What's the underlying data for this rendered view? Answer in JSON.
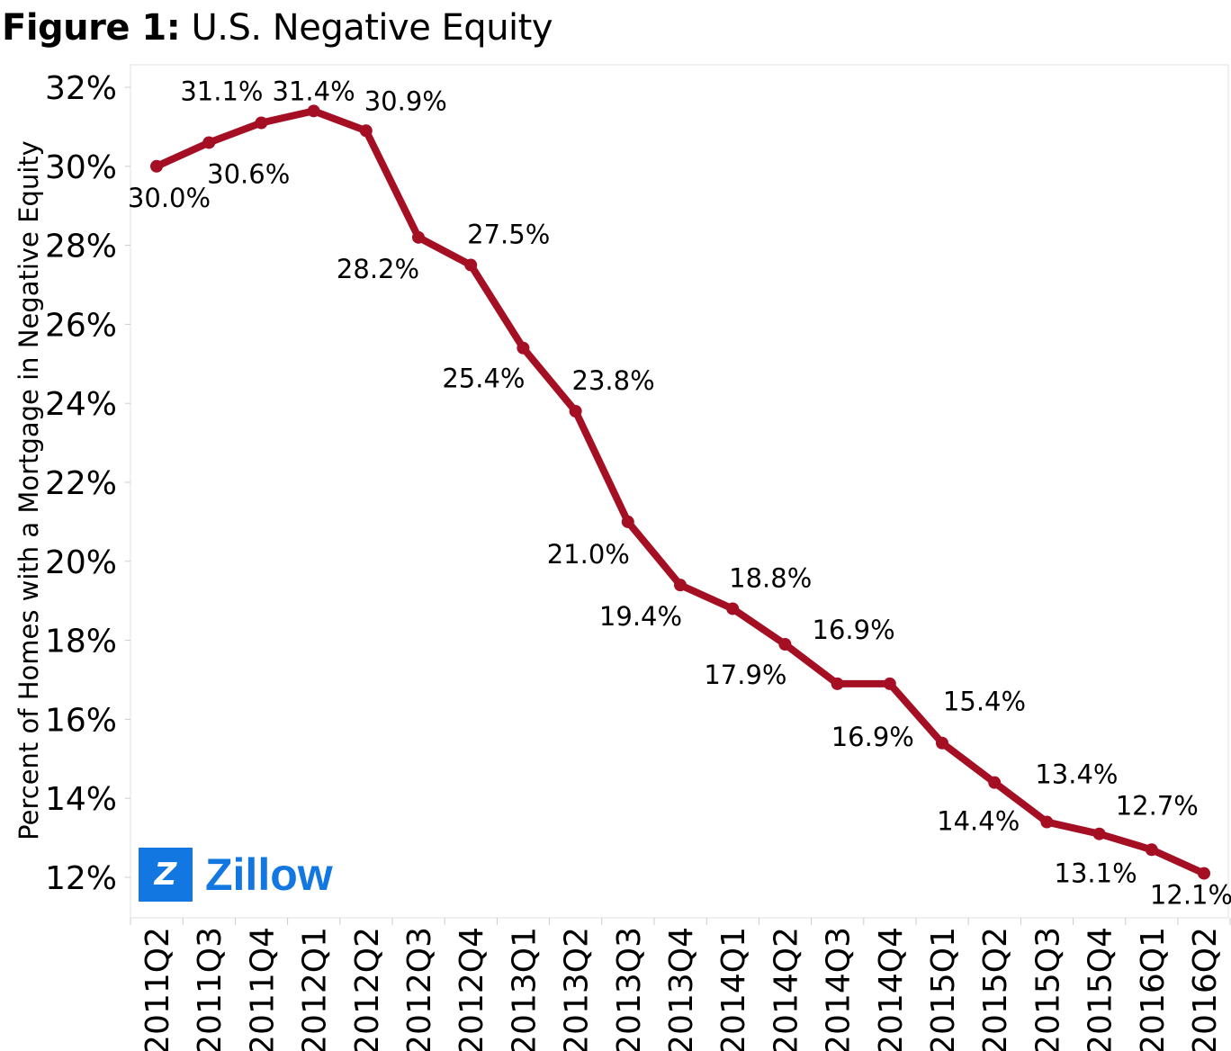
{
  "title": {
    "prefix": "Figure 1:",
    "text": "U.S. Negative Equity"
  },
  "logo": {
    "text": "Zillow",
    "color": "#1277e1"
  },
  "chart_data": {
    "type": "line",
    "title": "Figure 1: U.S. Negative Equity",
    "xlabel": "",
    "ylabel": "Percent of Homes with a Mortgage in Negative Equity",
    "ylim": [
      11.5,
      33
    ],
    "yticks": [
      12,
      14,
      16,
      18,
      20,
      22,
      24,
      26,
      28,
      30,
      32
    ],
    "ytick_format": "%",
    "grid": false,
    "line_color": "#a50f24",
    "categories": [
      "2011Q2",
      "2011Q3",
      "2011Q4",
      "2012Q1",
      "2012Q2",
      "2012Q3",
      "2012Q4",
      "2013Q1",
      "2013Q2",
      "2013Q3",
      "2013Q4",
      "2014Q1",
      "2014Q2",
      "2014Q3",
      "2014Q4",
      "2015Q1",
      "2015Q2",
      "2015Q3",
      "2015Q4",
      "2016Q1",
      "2016Q2"
    ],
    "values": [
      30.0,
      30.6,
      31.1,
      31.4,
      30.9,
      28.2,
      27.5,
      25.4,
      23.8,
      21.0,
      19.4,
      18.8,
      17.9,
      16.9,
      16.9,
      15.4,
      14.4,
      13.4,
      13.1,
      12.7,
      12.1
    ],
    "data_labels": [
      "30.0%",
      "30.6%",
      "31.1%",
      "31.4%",
      "30.9%",
      "28.2%",
      "27.5%",
      "25.4%",
      "23.8%",
      "21.0%",
      "19.4%",
      "18.8%",
      "17.9%",
      "16.9%",
      "16.9%",
      "15.4%",
      "14.4%",
      "13.4%",
      "13.1%",
      "12.7%",
      "12.1%"
    ]
  }
}
